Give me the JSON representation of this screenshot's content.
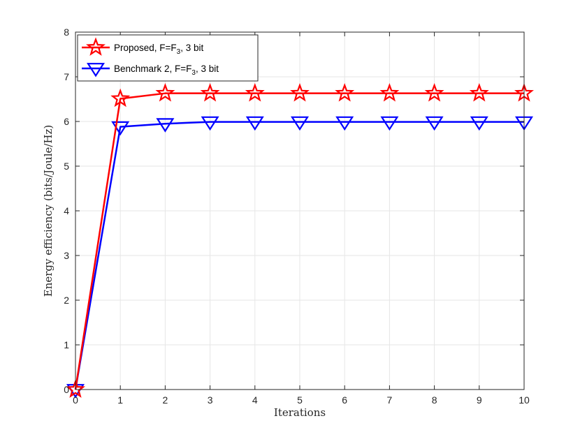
{
  "chart_data": {
    "type": "line",
    "xlabel": "Iterations",
    "ylabel": "Energy efficiency (bits/Joule/Hz)",
    "xlim": [
      0,
      10
    ],
    "ylim": [
      0,
      8
    ],
    "x_ticks": [
      0,
      1,
      2,
      3,
      4,
      5,
      6,
      7,
      8,
      9,
      10
    ],
    "y_ticks": [
      0,
      1,
      2,
      3,
      4,
      5,
      6,
      7,
      8
    ],
    "grid": true,
    "legend_position": "top-left",
    "x": [
      0,
      1,
      2,
      3,
      4,
      5,
      6,
      7,
      8,
      9,
      10
    ],
    "series": [
      {
        "name_main": "Proposed, F=F",
        "name_sub": "3",
        "name_tail": ", 3 bit",
        "color": "#ff0000",
        "marker": "star",
        "values": [
          0,
          6.51,
          6.63,
          6.63,
          6.63,
          6.63,
          6.63,
          6.63,
          6.63,
          6.63,
          6.63
        ]
      },
      {
        "name_main": "Benchmark 2, F=F",
        "name_sub": "3",
        "name_tail": ", 3 bit",
        "color": "#0000ff",
        "marker": "triangle-down",
        "values": [
          0,
          5.88,
          5.95,
          5.99,
          5.99,
          5.99,
          5.99,
          5.99,
          5.99,
          5.99,
          5.99
        ]
      }
    ]
  }
}
